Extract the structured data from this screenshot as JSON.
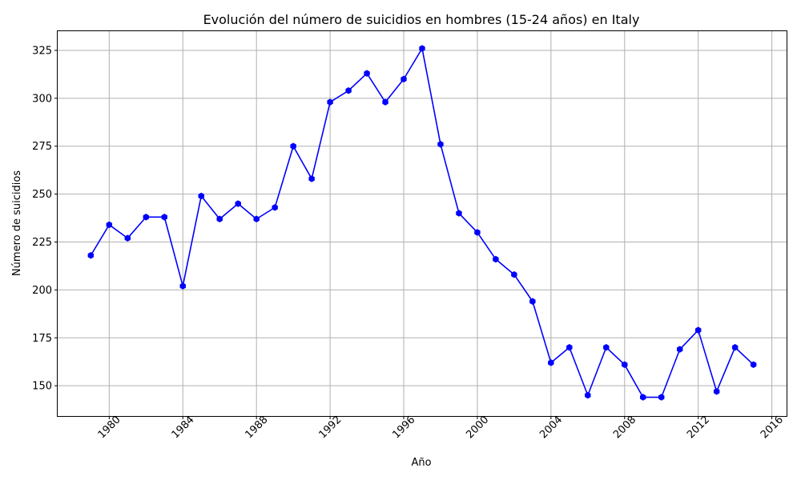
{
  "chart_data": {
    "type": "line",
    "title": "Evolución del número de suicidios en hombres (15-24 años) en Italy",
    "xlabel": "Año",
    "ylabel": "Número de suicidios",
    "xlim": [
      1977.2,
      2016.8
    ],
    "ylim": [
      134.2,
      335.0
    ],
    "xticks": [
      1980,
      1984,
      1988,
      1992,
      1996,
      2000,
      2004,
      2008,
      2012,
      2016
    ],
    "yticks": [
      150,
      175,
      200,
      225,
      250,
      275,
      300,
      325
    ],
    "grid": true,
    "series": [
      {
        "name": "Número de suicidios",
        "color": "#0000ff",
        "marker": "hexagon",
        "x": [
          1979,
          1980,
          1981,
          1982,
          1983,
          1984,
          1985,
          1986,
          1987,
          1988,
          1989,
          1990,
          1991,
          1992,
          1993,
          1994,
          1995,
          1996,
          1997,
          1998,
          1999,
          2000,
          2001,
          2002,
          2003,
          2004,
          2005,
          2006,
          2007,
          2008,
          2009,
          2010,
          2011,
          2012,
          2013,
          2014,
          2015
        ],
        "values": [
          218,
          234,
          227,
          238,
          238,
          202,
          249,
          237,
          245,
          237,
          243,
          275,
          258,
          298,
          304,
          313,
          298,
          310,
          326,
          276,
          240,
          230,
          216,
          208,
          194,
          162,
          170,
          145,
          170,
          161,
          144,
          144,
          169,
          179,
          147,
          170,
          161
        ]
      }
    ]
  }
}
